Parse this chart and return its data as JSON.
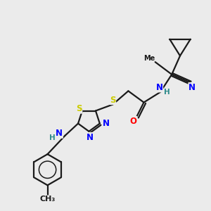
{
  "bg_color": "#ebebeb",
  "bond_color": "#1a1a1a",
  "bond_width": 1.6,
  "atom_colors": {
    "N": "#0000ff",
    "O": "#ff0000",
    "S": "#cccc00",
    "H": "#2e8b8b",
    "C": "#1a1a1a"
  },
  "font_size": 8.5,
  "fig_size": [
    3.0,
    3.0
  ],
  "dpi": 100,
  "xlim": [
    0,
    10
  ],
  "ylim": [
    0,
    10
  ]
}
